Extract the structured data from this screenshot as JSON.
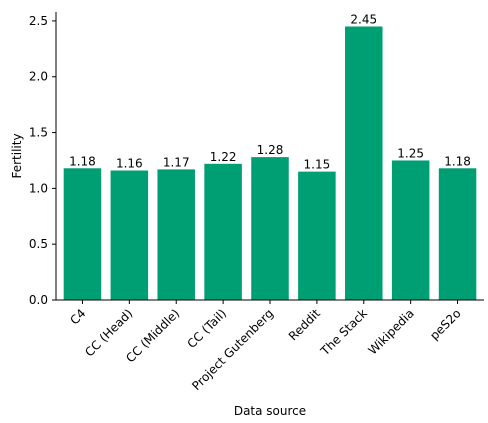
{
  "chart_data": {
    "type": "bar",
    "title": "",
    "xlabel": "Data source",
    "ylabel": "Fertility",
    "categories": [
      "C4",
      "CC (Head)",
      "CC (Middle)",
      "CC (Tail)",
      "Project Gutenberg",
      "Reddit",
      "The Stack",
      "Wikipedia",
      "peS2o"
    ],
    "values": [
      1.18,
      1.16,
      1.17,
      1.22,
      1.28,
      1.15,
      2.45,
      1.25,
      1.18
    ],
    "value_labels": [
      "1.18",
      "1.16",
      "1.17",
      "1.22",
      "1.28",
      "1.15",
      "2.45",
      "1.25",
      "1.18"
    ],
    "ylim": [
      0,
      2.58
    ],
    "yticks": [
      "0.0",
      "0.5",
      "1.0",
      "1.5",
      "2.0",
      "2.5"
    ],
    "bar_color": "#009e73",
    "grid": false,
    "legend": "none",
    "spines": "left-bottom"
  }
}
